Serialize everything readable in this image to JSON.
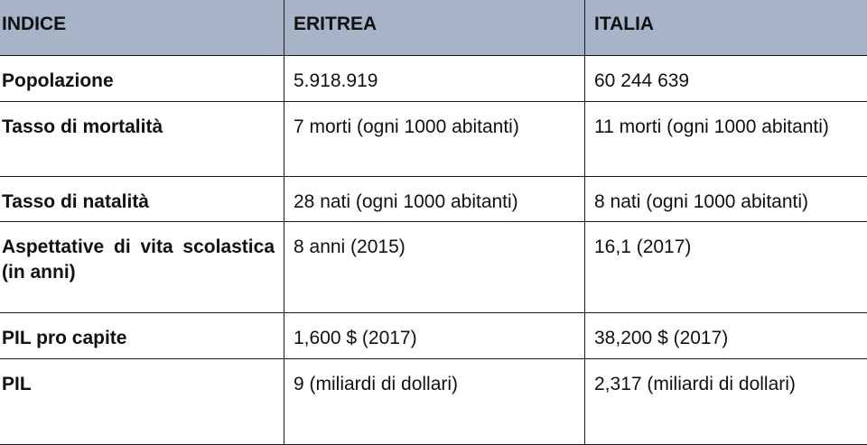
{
  "table": {
    "headers": [
      "INDICE",
      "ERITREA",
      "ITALIA"
    ],
    "rows": [
      {
        "indice": "Popolazione",
        "eritrea": "5.918.919",
        "italia": "60 244 639"
      },
      {
        "indice": "Tasso di mortalità",
        "eritrea": "7 morti (ogni 1000 abitanti)",
        "italia": "11 morti (ogni 1000 abitanti)"
      },
      {
        "indice": "Tasso di natalità",
        "eritrea": "28 nati (ogni 1000 abitanti)",
        "italia": "8 nati (ogni 1000 abitanti)"
      },
      {
        "indice": "Aspettative di vita scolastica (in anni)",
        "eritrea": "8 anni (2015)",
        "italia": "16,1 (2017)"
      },
      {
        "indice": "PIL pro capite",
        "eritrea": "1,600 $ (2017)",
        "italia": "38,200 $ (2017)"
      },
      {
        "indice": "PIL",
        "eritrea": "9 (miliardi di dollari)",
        "italia": "2,317 (miliardi di dollari)"
      }
    ]
  },
  "colors": {
    "header_background": "#a7b4c8",
    "border": "#1a1a1a",
    "text": "#111111"
  }
}
